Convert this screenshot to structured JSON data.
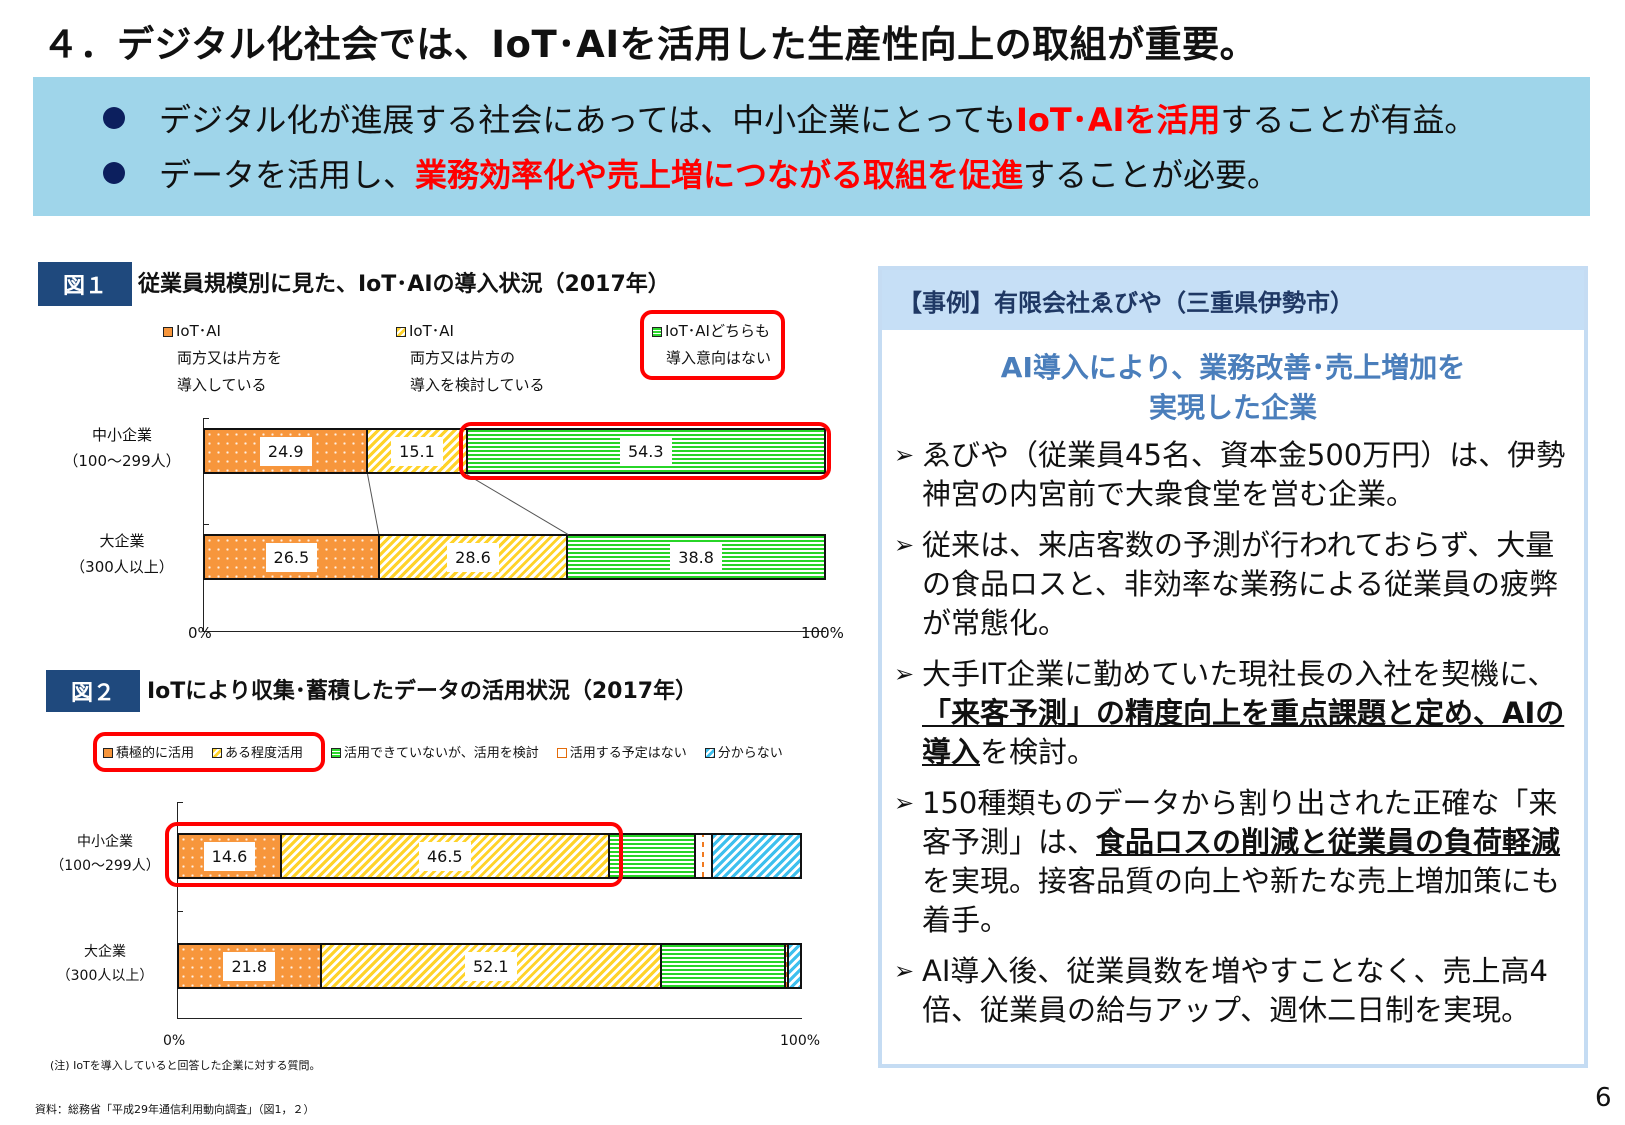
{
  "title": "４．デジタル化社会では、IoT･AIを活用した生産性向上の取組が重要。",
  "summary": {
    "bullets": [
      {
        "pre": "デジタル化が進展する社会にあっては、中小企業にとっても",
        "highlight": "IoT･AIを活用",
        "post": "することが有益。"
      },
      {
        "pre": "データを活用し、",
        "highlight": "業務効率化や売上増につながる取組を促進",
        "post": "することが必要。"
      }
    ]
  },
  "figure1": {
    "label": "図１",
    "title": "従業員規模別に見た、IoT･AIの導入状況（2017年）",
    "legend": [
      {
        "lines": [
          "IoT･AI",
          "両方又は片方を",
          "導入している"
        ],
        "swatch": "orange"
      },
      {
        "lines": [
          "IoT･AI",
          "両方又は片方の",
          "導入を検討している"
        ],
        "swatch": "yellow"
      },
      {
        "lines": [
          "IoT･AIどちらも",
          "導入意向はない"
        ],
        "swatch": "green"
      }
    ],
    "categories": [
      {
        "line1": "中小企業",
        "line2": "（100～299人）"
      },
      {
        "line1": "大企業",
        "line2": "（300人以上）"
      }
    ],
    "axis": {
      "min_label": "0%",
      "max_label": "100%"
    }
  },
  "figure2": {
    "label": "図２",
    "title": "IoTにより収集･蓄積したデータの活用状況（2017年）",
    "legend": [
      {
        "label": "積極的に活用",
        "swatch": "orange"
      },
      {
        "label": "ある程度活用",
        "swatch": "yellow"
      },
      {
        "label": "活用できていないが、活用を検討",
        "swatch": "green"
      },
      {
        "label": "活用する予定はない",
        "swatch": "white"
      },
      {
        "label": "分からない",
        "swatch": "blue"
      }
    ],
    "categories": [
      {
        "line1": "中小企業",
        "line2": "（100～299人）"
      },
      {
        "line1": "大企業",
        "line2": "（300人以上）"
      }
    ],
    "axis": {
      "min_label": "0%",
      "max_label": "100%"
    },
    "note": "(注) IoTを導入していると回答した企業に対する質問。"
  },
  "source": "資料：総務省「平成29年通信利用動向調査」（図1，２）",
  "case_study": {
    "header": "【事例】有限会社ゑびや（三重県伊勢市）",
    "subtitle_line1": "AI導入により、業務改善･売上増加を",
    "subtitle_line2": "実現した企業",
    "items": [
      {
        "parts": [
          {
            "t": "ゑびや（従業員45名、資本金500万円）は、伊勢神宮の内宮前で大衆食堂を営む企業。"
          }
        ]
      },
      {
        "parts": [
          {
            "t": "従来は、来店客数の予測が行われておらず、大量の食品ロスと、非効率な業務による従業員の疲弊が常態化。"
          }
        ]
      },
      {
        "parts": [
          {
            "t": "大手IT企業に勤めていた現社長の入社を契機に、"
          },
          {
            "t": "「来客予測」の精度向上を重点課題と定め、AIの導入",
            "bold": true
          },
          {
            "t": "を検討。"
          }
        ]
      },
      {
        "parts": [
          {
            "t": "150種類ものデータから割り出された正確な「来客予測」は、"
          },
          {
            "t": "食品ロスの削減と従業員の負荷軽減",
            "bold": true
          },
          {
            "t": "を実現。接客品質の向上や新たな売上増加策にも着手。"
          }
        ]
      },
      {
        "parts": [
          {
            "t": "AI導入後、従業員数を増やすことなく、売上高4倍、従業員の給与アップ、週休二日制を実現。"
          }
        ]
      }
    ]
  },
  "page_number": "6",
  "colors": {
    "banner_bg": "#9fd5ea",
    "highlight_red": "#ff0000",
    "fig_label_bg": "#1f497d",
    "case_header_bg": "#c6dff6",
    "case_subtitle": "#4a7ebb",
    "orange": "#f7963c",
    "yellow": "#ffd32a",
    "green": "#27d527",
    "blue": "#3ec0ee"
  },
  "chart_data": [
    {
      "type": "bar",
      "orientation": "horizontal-stacked-100",
      "title": "従業員規模別に見た、IoT･AIの導入状況（2017年）",
      "categories": [
        "中小企業（100～299人）",
        "大企業（300人以上）"
      ],
      "series": [
        {
          "name": "IoT･AI両方又は片方を導入している",
          "values": [
            24.9,
            26.5
          ]
        },
        {
          "name": "IoT･AI両方又は片方の導入を検討している",
          "values": [
            15.1,
            28.6
          ]
        },
        {
          "name": "IoT･AIどちらも導入意向はない",
          "values": [
            54.3,
            38.8
          ]
        }
      ],
      "xlim": [
        0,
        100
      ],
      "xticks": [
        "0%",
        "100%"
      ],
      "legend_position": "top",
      "annotations": [
        "中小企業の「導入意向はない」54.3%を赤枠で強調"
      ]
    },
    {
      "type": "bar",
      "orientation": "horizontal-stacked-100",
      "title": "IoTにより収集･蓄積したデータの活用状況（2017年）",
      "categories": [
        "中小企業（100～299人）",
        "大企業（300人以上）"
      ],
      "series": [
        {
          "name": "積極的に活用",
          "values": [
            14.6,
            21.8
          ]
        },
        {
          "name": "ある程度活用",
          "values": [
            46.5,
            52.1
          ]
        },
        {
          "name": "活用できていないが、活用を検討",
          "values": [
            12.2,
            19.0
          ]
        },
        {
          "name": "活用する予定はない",
          "values": [
            2.5,
            0.4
          ]
        },
        {
          "name": "分からない",
          "values": [
            12.3,
            1.7
          ]
        }
      ],
      "xlim": [
        0,
        100
      ],
      "xticks": [
        "0%",
        "100%"
      ],
      "legend_position": "top",
      "note": "(注) IoTを導入していると回答した企業に対する質問。",
      "annotations": [
        "中小企業の「積極的に活用」「ある程度活用」を赤枠で強調",
        "unlabeled segment values estimated from bar widths"
      ]
    }
  ]
}
